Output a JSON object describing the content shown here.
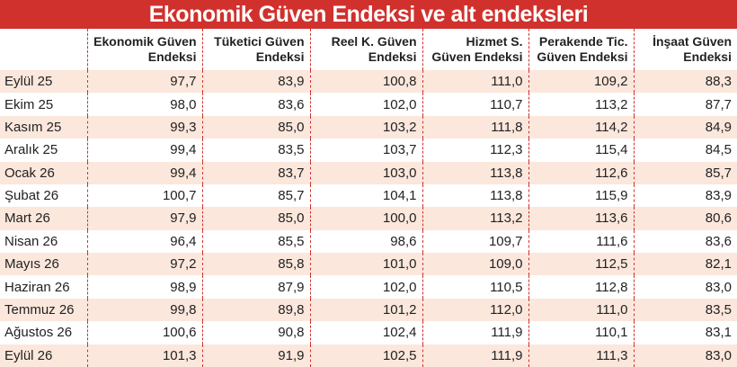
{
  "header": {
    "title": "Ekonomik Güven Endeksi ve alt endeksleri"
  },
  "table": {
    "columns": [
      "",
      "Ekonomik Güven Endeksi",
      "Tüketici Güven Endeksi",
      "Reel K. Güven Endeksi",
      "Hizmet S. Güven Endeksi",
      "Perakende Tic. Güven Endeksi",
      "İnşaat Güven Endeksi"
    ],
    "rows": [
      [
        "Eylül 25",
        "97,7",
        "83,9",
        "100,8",
        "111,0",
        "109,2",
        "88,3"
      ],
      [
        "Ekim 25",
        "98,0",
        "83,6",
        "102,0",
        "110,7",
        "113,2",
        "87,7"
      ],
      [
        "Kasım 25",
        "99,3",
        "85,0",
        "103,2",
        "111,8",
        "114,2",
        "84,9"
      ],
      [
        "Aralık 25",
        "99,4",
        "83,5",
        "103,7",
        "112,3",
        "115,4",
        "84,5"
      ],
      [
        "Ocak 26",
        "99,4",
        "83,7",
        "103,0",
        "113,8",
        "112,6",
        "85,7"
      ],
      [
        "Şubat 26",
        "100,7",
        "85,7",
        "104,1",
        "113,8",
        "115,9",
        "83,9"
      ],
      [
        "Mart 26",
        "97,9",
        "85,0",
        "100,0",
        "113,2",
        "113,6",
        "80,6"
      ],
      [
        "Nisan 26",
        "96,4",
        "85,5",
        "98,6",
        "109,7",
        "111,6",
        "83,6"
      ],
      [
        "Mayıs 26",
        "97,2",
        "85,8",
        "101,0",
        "109,0",
        "112,5",
        "82,1"
      ],
      [
        "Haziran 26",
        "98,9",
        "87,9",
        "102,0",
        "110,5",
        "112,8",
        "83,0"
      ],
      [
        "Temmuz 26",
        "99,8",
        "89,8",
        "101,2",
        "112,0",
        "111,0",
        "83,5"
      ],
      [
        "Ağustos 26",
        "100,6",
        "90,8",
        "102,4",
        "111,9",
        "110,1",
        "83,1"
      ],
      [
        "Eylül 26",
        "101,3",
        "91,9",
        "102,5",
        "111,9",
        "111,3",
        "83,0"
      ]
    ]
  }
}
